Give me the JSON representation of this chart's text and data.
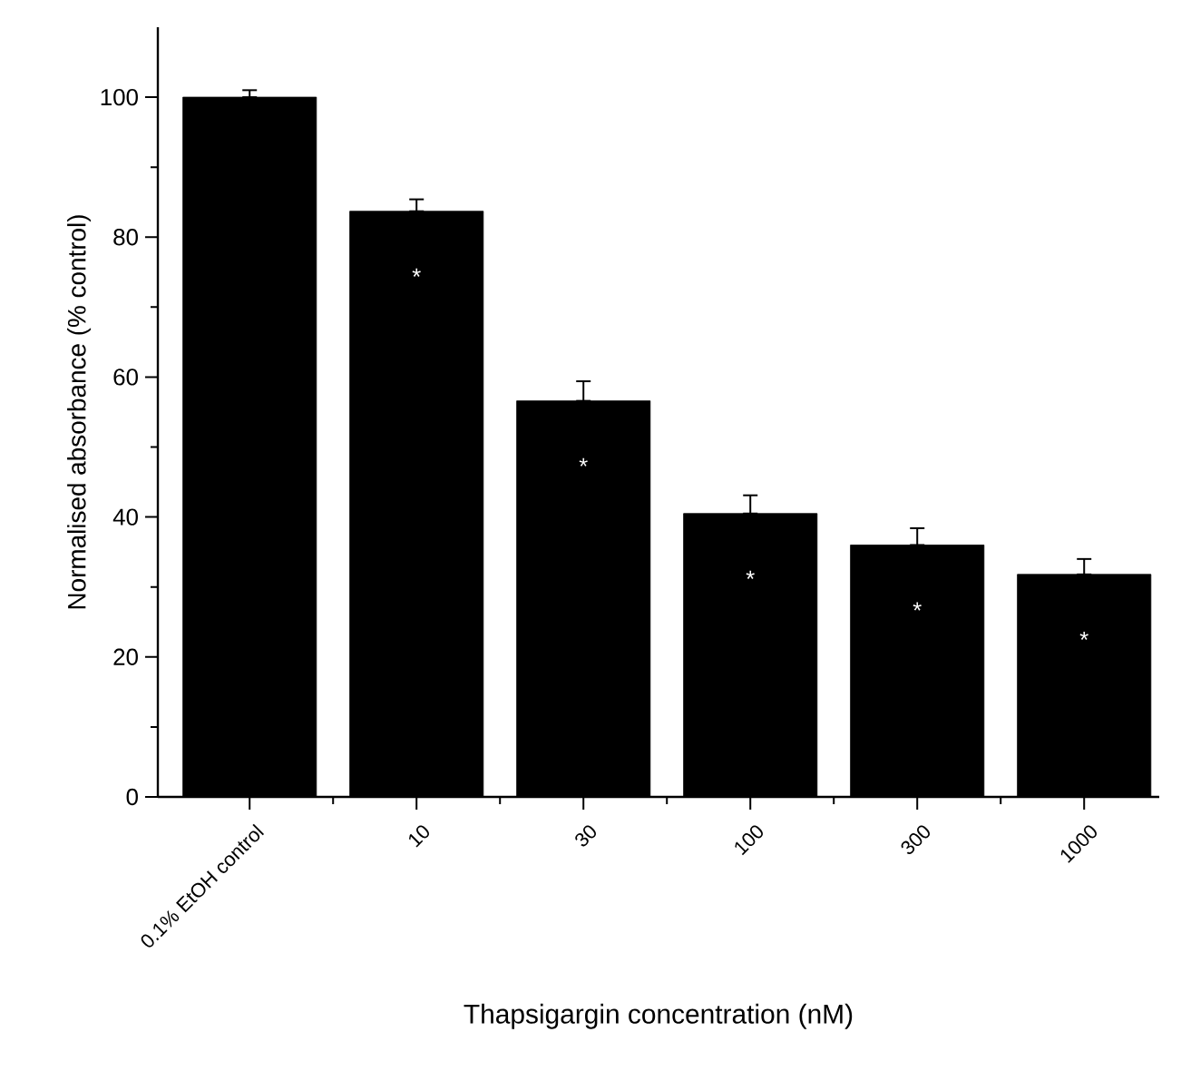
{
  "chart_data": {
    "type": "bar",
    "xlabel": "Thapsigargin concentration (nM)",
    "ylabel": "Normalised absorbance (% control)",
    "categories": [
      "0.1% EtOH control",
      "10",
      "30",
      "100",
      "300",
      "1000"
    ],
    "values": [
      100,
      83.7,
      56.6,
      40.5,
      36,
      31.8
    ],
    "errors": [
      [
        100,
        101
      ],
      [
        83.7,
        85.4
      ],
      [
        56.6,
        59.4
      ],
      [
        40.5,
        43.1
      ],
      [
        36,
        38.4
      ],
      [
        31.8,
        34
      ]
    ],
    "color": "#000000",
    "ylim": [
      0,
      110
    ],
    "yticks": [
      0,
      20,
      40,
      60,
      80,
      100
    ],
    "annotations": [
      "*",
      "*",
      "*",
      "*",
      "*"
    ]
  }
}
